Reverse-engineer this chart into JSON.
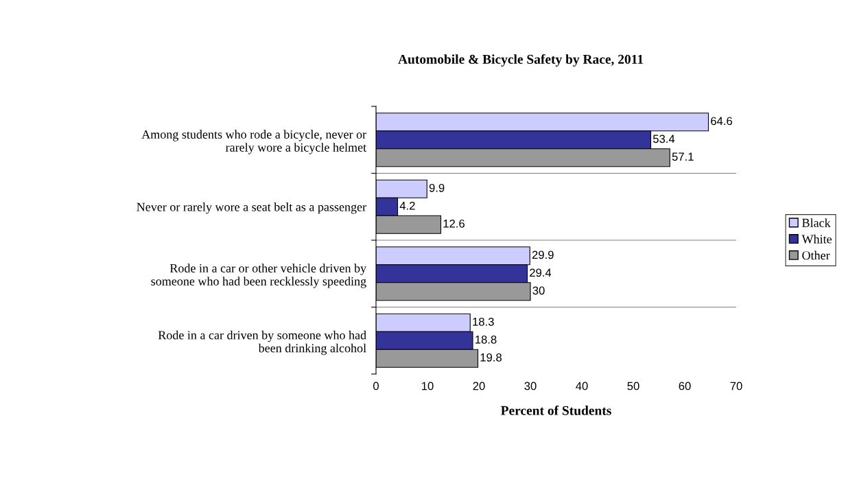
{
  "chart_data": {
    "type": "bar",
    "orientation": "horizontal",
    "title": "Automobile & Bicycle Safety by Race, 2011",
    "xlabel": "Percent of Students",
    "categories": [
      "Among students who rode a bicycle, never or\nrarely wore a bicycle helmet",
      "Never or rarely wore a seat belt as a passenger",
      "Rode in a car or other vehicle driven by\nsomeone who had been recklessly speeding",
      "Rode in a car driven by someone who had\nbeen drinking alcohol"
    ],
    "series": [
      {
        "name": "Black",
        "color": "#ccccff",
        "values": [
          64.6,
          9.9,
          29.9,
          18.3
        ]
      },
      {
        "name": "White",
        "color": "#333399",
        "values": [
          53.4,
          4.2,
          29.4,
          18.8
        ]
      },
      {
        "name": "Other",
        "color": "#999999",
        "values": [
          57.1,
          12.6,
          30,
          19.8
        ]
      }
    ],
    "xlim": [
      0,
      70
    ],
    "xticks": [
      0,
      10,
      20,
      30,
      40,
      50,
      60,
      70
    ],
    "data_labels": true,
    "grid": "y",
    "legend": "right"
  }
}
